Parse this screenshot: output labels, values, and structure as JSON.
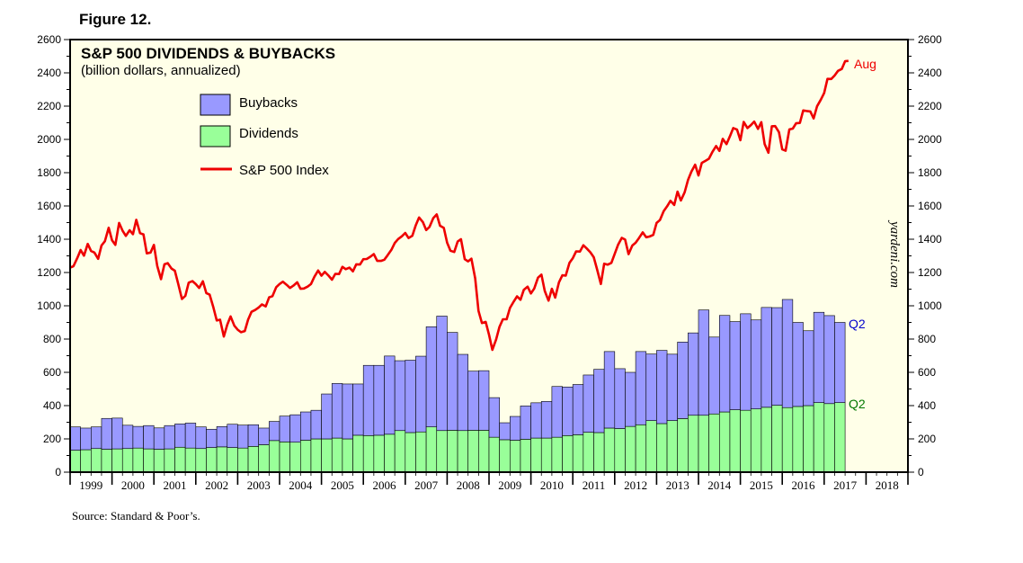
{
  "figure_label": "Figure 12.",
  "source": "Source: Standard & Poor’s.",
  "credit": "yardeni.com",
  "colors": {
    "background": "#ffffe8",
    "buybacks": "#9999ff",
    "dividends": "#99ff99",
    "index_line": "#ee0000",
    "buybacks_annotation": "#0000cc",
    "dividends_annotation": "#007700"
  },
  "chart_data": {
    "type": "bar",
    "title": "S&P 500 DIVIDENDS & BUYBACKS",
    "subtitle": "(billion dollars, annualized)",
    "ylim": [
      0,
      2600
    ],
    "yticks": [
      0,
      200,
      400,
      600,
      800,
      1000,
      1200,
      1400,
      1600,
      1800,
      2000,
      2200,
      2400,
      2600
    ],
    "ytick_labels": [
      "0",
      "200",
      "400",
      "600",
      "800",
      "1000",
      "1200",
      "1400",
      "1600",
      "1800",
      "2000",
      "2200",
      "2400",
      "2600"
    ],
    "xlim": [
      1999,
      2019
    ],
    "year_labels": [
      "1999",
      "2000",
      "2001",
      "2002",
      "2003",
      "2004",
      "2005",
      "2006",
      "2007",
      "2008",
      "2009",
      "2010",
      "2011",
      "2012",
      "2013",
      "2014",
      "2015",
      "2016",
      "2017",
      "2018"
    ],
    "stacked": true,
    "legend": [
      {
        "name": "Buybacks",
        "marker": "box",
        "color_key": "buybacks"
      },
      {
        "name": "Dividends",
        "marker": "box",
        "color_key": "dividends"
      },
      {
        "name": "S&P 500 Index",
        "marker": "line",
        "color_key": "index_line"
      }
    ],
    "quarters": [
      "1999Q1",
      "1999Q2",
      "1999Q3",
      "1999Q4",
      "2000Q1",
      "2000Q2",
      "2000Q3",
      "2000Q4",
      "2001Q1",
      "2001Q2",
      "2001Q3",
      "2001Q4",
      "2002Q1",
      "2002Q2",
      "2002Q3",
      "2002Q4",
      "2003Q1",
      "2003Q2",
      "2003Q3",
      "2003Q4",
      "2004Q1",
      "2004Q2",
      "2004Q3",
      "2004Q4",
      "2005Q1",
      "2005Q2",
      "2005Q3",
      "2005Q4",
      "2006Q1",
      "2006Q2",
      "2006Q3",
      "2006Q4",
      "2007Q1",
      "2007Q2",
      "2007Q3",
      "2007Q4",
      "2008Q1",
      "2008Q2",
      "2008Q3",
      "2008Q4",
      "2009Q1",
      "2009Q2",
      "2009Q3",
      "2009Q4",
      "2010Q1",
      "2010Q2",
      "2010Q3",
      "2010Q4",
      "2011Q1",
      "2011Q2",
      "2011Q3",
      "2011Q4",
      "2012Q1",
      "2012Q2",
      "2012Q3",
      "2012Q4",
      "2013Q1",
      "2013Q2",
      "2013Q3",
      "2013Q4",
      "2014Q1",
      "2014Q2",
      "2014Q3",
      "2014Q4",
      "2015Q1",
      "2015Q2",
      "2015Q3",
      "2015Q4",
      "2016Q1",
      "2016Q2",
      "2016Q3",
      "2016Q4",
      "2017Q1",
      "2017Q2"
    ],
    "series": [
      {
        "name": "Dividends",
        "type": "bar",
        "values": [
          132,
          135,
          142,
          138,
          140,
          142,
          145,
          140,
          138,
          140,
          150,
          145,
          142,
          148,
          152,
          148,
          145,
          155,
          165,
          190,
          182,
          180,
          192,
          200,
          200,
          205,
          200,
          222,
          220,
          222,
          228,
          250,
          238,
          242,
          272,
          250,
          252,
          250,
          252,
          252,
          210,
          195,
          192,
          198,
          205,
          205,
          210,
          220,
          225,
          240,
          238,
          265,
          262,
          275,
          285,
          310,
          292,
          310,
          322,
          342,
          342,
          350,
          362,
          375,
          372,
          380,
          390,
          402,
          388,
          395,
          400,
          418,
          412,
          418
        ]
      },
      {
        "name": "Buybacks",
        "type": "bar",
        "values": [
          140,
          130,
          130,
          185,
          185,
          140,
          130,
          140,
          128,
          140,
          140,
          150,
          130,
          110,
          122,
          140,
          138,
          130,
          100,
          115,
          155,
          165,
          170,
          172,
          270,
          328,
          330,
          308,
          422,
          420,
          470,
          420,
          435,
          455,
          602,
          688,
          588,
          458,
          355,
          358,
          238,
          102,
          143,
          200,
          212,
          220,
          305,
          292,
          302,
          344,
          380,
          460,
          360,
          325,
          440,
          400,
          440,
          399,
          460,
          495,
          633,
          462,
          580,
          530,
          580,
          535,
          600,
          587,
          650,
          505,
          450,
          543,
          529,
          482
        ]
      },
      {
        "name": "S&P 500 Index",
        "type": "line",
        "points": [
          [
            1999.0,
            1229
          ],
          [
            1999.08,
            1238
          ],
          [
            1999.17,
            1286
          ],
          [
            1999.25,
            1335
          ],
          [
            1999.33,
            1301
          ],
          [
            1999.42,
            1372
          ],
          [
            1999.5,
            1329
          ],
          [
            1999.58,
            1320
          ],
          [
            1999.67,
            1282
          ],
          [
            1999.75,
            1362
          ],
          [
            1999.83,
            1388
          ],
          [
            1999.92,
            1469
          ],
          [
            2000.0,
            1394
          ],
          [
            2000.08,
            1366
          ],
          [
            2000.17,
            1498
          ],
          [
            2000.25,
            1452
          ],
          [
            2000.33,
            1420
          ],
          [
            2000.42,
            1454
          ],
          [
            2000.5,
            1430
          ],
          [
            2000.58,
            1517
          ],
          [
            2000.67,
            1436
          ],
          [
            2000.75,
            1429
          ],
          [
            2000.83,
            1315
          ],
          [
            2000.92,
            1320
          ],
          [
            2001.0,
            1366
          ],
          [
            2001.08,
            1240
          ],
          [
            2001.17,
            1160
          ],
          [
            2001.25,
            1249
          ],
          [
            2001.33,
            1256
          ],
          [
            2001.42,
            1224
          ],
          [
            2001.5,
            1211
          ],
          [
            2001.58,
            1133
          ],
          [
            2001.67,
            1041
          ],
          [
            2001.75,
            1060
          ],
          [
            2001.83,
            1139
          ],
          [
            2001.92,
            1148
          ],
          [
            2002.0,
            1130
          ],
          [
            2002.08,
            1107
          ],
          [
            2002.17,
            1147
          ],
          [
            2002.25,
            1076
          ],
          [
            2002.33,
            1067
          ],
          [
            2002.42,
            990
          ],
          [
            2002.5,
            912
          ],
          [
            2002.58,
            916
          ],
          [
            2002.67,
            815
          ],
          [
            2002.75,
            886
          ],
          [
            2002.83,
            936
          ],
          [
            2002.92,
            880
          ],
          [
            2003.0,
            856
          ],
          [
            2003.08,
            841
          ],
          [
            2003.17,
            848
          ],
          [
            2003.25,
            917
          ],
          [
            2003.33,
            964
          ],
          [
            2003.42,
            975
          ],
          [
            2003.5,
            990
          ],
          [
            2003.58,
            1008
          ],
          [
            2003.67,
            996
          ],
          [
            2003.75,
            1051
          ],
          [
            2003.83,
            1058
          ],
          [
            2003.92,
            1112
          ],
          [
            2004.0,
            1131
          ],
          [
            2004.08,
            1145
          ],
          [
            2004.17,
            1126
          ],
          [
            2004.25,
            1107
          ],
          [
            2004.33,
            1121
          ],
          [
            2004.42,
            1141
          ],
          [
            2004.5,
            1102
          ],
          [
            2004.58,
            1104
          ],
          [
            2004.67,
            1115
          ],
          [
            2004.75,
            1130
          ],
          [
            2004.83,
            1174
          ],
          [
            2004.92,
            1212
          ],
          [
            2005.0,
            1181
          ],
          [
            2005.08,
            1204
          ],
          [
            2005.17,
            1181
          ],
          [
            2005.25,
            1157
          ],
          [
            2005.33,
            1192
          ],
          [
            2005.42,
            1191
          ],
          [
            2005.5,
            1234
          ],
          [
            2005.58,
            1220
          ],
          [
            2005.67,
            1229
          ],
          [
            2005.75,
            1207
          ],
          [
            2005.83,
            1249
          ],
          [
            2005.92,
            1248
          ],
          [
            2006.0,
            1280
          ],
          [
            2006.08,
            1281
          ],
          [
            2006.17,
            1295
          ],
          [
            2006.25,
            1311
          ],
          [
            2006.33,
            1270
          ],
          [
            2006.42,
            1270
          ],
          [
            2006.5,
            1277
          ],
          [
            2006.58,
            1304
          ],
          [
            2006.67,
            1336
          ],
          [
            2006.75,
            1378
          ],
          [
            2006.83,
            1401
          ],
          [
            2006.92,
            1418
          ],
          [
            2007.0,
            1438
          ],
          [
            2007.08,
            1407
          ],
          [
            2007.17,
            1421
          ],
          [
            2007.25,
            1482
          ],
          [
            2007.33,
            1531
          ],
          [
            2007.42,
            1503
          ],
          [
            2007.5,
            1455
          ],
          [
            2007.58,
            1474
          ],
          [
            2007.67,
            1527
          ],
          [
            2007.75,
            1549
          ],
          [
            2007.83,
            1481
          ],
          [
            2007.92,
            1468
          ],
          [
            2008.0,
            1379
          ],
          [
            2008.08,
            1331
          ],
          [
            2008.17,
            1323
          ],
          [
            2008.25,
            1386
          ],
          [
            2008.33,
            1400
          ],
          [
            2008.42,
            1280
          ],
          [
            2008.5,
            1267
          ],
          [
            2008.58,
            1283
          ],
          [
            2008.67,
            1165
          ],
          [
            2008.75,
            969
          ],
          [
            2008.83,
            896
          ],
          [
            2008.92,
            903
          ],
          [
            2009.0,
            826
          ],
          [
            2009.08,
            735
          ],
          [
            2009.17,
            798
          ],
          [
            2009.25,
            873
          ],
          [
            2009.33,
            919
          ],
          [
            2009.42,
            919
          ],
          [
            2009.5,
            987
          ],
          [
            2009.58,
            1021
          ],
          [
            2009.67,
            1057
          ],
          [
            2009.75,
            1036
          ],
          [
            2009.83,
            1096
          ],
          [
            2009.92,
            1115
          ],
          [
            2010.0,
            1074
          ],
          [
            2010.08,
            1104
          ],
          [
            2010.17,
            1169
          ],
          [
            2010.25,
            1187
          ],
          [
            2010.33,
            1089
          ],
          [
            2010.42,
            1031
          ],
          [
            2010.5,
            1102
          ],
          [
            2010.58,
            1049
          ],
          [
            2010.67,
            1141
          ],
          [
            2010.75,
            1183
          ],
          [
            2010.83,
            1181
          ],
          [
            2010.92,
            1258
          ],
          [
            2011.0,
            1286
          ],
          [
            2011.08,
            1327
          ],
          [
            2011.17,
            1326
          ],
          [
            2011.25,
            1364
          ],
          [
            2011.33,
            1345
          ],
          [
            2011.42,
            1321
          ],
          [
            2011.5,
            1292
          ],
          [
            2011.58,
            1219
          ],
          [
            2011.67,
            1131
          ],
          [
            2011.75,
            1253
          ],
          [
            2011.83,
            1247
          ],
          [
            2011.92,
            1258
          ],
          [
            2012.0,
            1312
          ],
          [
            2012.08,
            1366
          ],
          [
            2012.17,
            1408
          ],
          [
            2012.25,
            1398
          ],
          [
            2012.33,
            1310
          ],
          [
            2012.42,
            1362
          ],
          [
            2012.5,
            1379
          ],
          [
            2012.58,
            1407
          ],
          [
            2012.67,
            1441
          ],
          [
            2012.75,
            1412
          ],
          [
            2012.83,
            1416
          ],
          [
            2012.92,
            1426
          ],
          [
            2013.0,
            1498
          ],
          [
            2013.08,
            1515
          ],
          [
            2013.17,
            1569
          ],
          [
            2013.25,
            1598
          ],
          [
            2013.33,
            1631
          ],
          [
            2013.42,
            1606
          ],
          [
            2013.5,
            1686
          ],
          [
            2013.58,
            1633
          ],
          [
            2013.67,
            1682
          ],
          [
            2013.75,
            1757
          ],
          [
            2013.83,
            1806
          ],
          [
            2013.92,
            1848
          ],
          [
            2014.0,
            1783
          ],
          [
            2014.08,
            1859
          ],
          [
            2014.17,
            1872
          ],
          [
            2014.25,
            1884
          ],
          [
            2014.33,
            1924
          ],
          [
            2014.42,
            1960
          ],
          [
            2014.5,
            1931
          ],
          [
            2014.58,
            2003
          ],
          [
            2014.67,
            1972
          ],
          [
            2014.75,
            2018
          ],
          [
            2014.83,
            2068
          ],
          [
            2014.92,
            2059
          ],
          [
            2015.0,
            1995
          ],
          [
            2015.08,
            2105
          ],
          [
            2015.17,
            2068
          ],
          [
            2015.25,
            2086
          ],
          [
            2015.33,
            2107
          ],
          [
            2015.42,
            2063
          ],
          [
            2015.5,
            2104
          ],
          [
            2015.58,
            1972
          ],
          [
            2015.67,
            1920
          ],
          [
            2015.75,
            2079
          ],
          [
            2015.83,
            2080
          ],
          [
            2015.92,
            2044
          ],
          [
            2016.0,
            1940
          ],
          [
            2016.08,
            1932
          ],
          [
            2016.17,
            2060
          ],
          [
            2016.25,
            2065
          ],
          [
            2016.33,
            2097
          ],
          [
            2016.42,
            2099
          ],
          [
            2016.5,
            2174
          ],
          [
            2016.58,
            2171
          ],
          [
            2016.67,
            2168
          ],
          [
            2016.75,
            2126
          ],
          [
            2016.83,
            2199
          ],
          [
            2016.92,
            2239
          ],
          [
            2017.0,
            2279
          ],
          [
            2017.08,
            2364
          ],
          [
            2017.17,
            2363
          ],
          [
            2017.25,
            2384
          ],
          [
            2017.33,
            2412
          ],
          [
            2017.42,
            2423
          ],
          [
            2017.5,
            2470
          ],
          [
            2017.58,
            2472
          ]
        ]
      }
    ],
    "annotations": [
      {
        "text": "Aug",
        "color_key": "index_line"
      },
      {
        "text": "Q2",
        "color_key": "buybacks_annotation"
      },
      {
        "text": "Q2",
        "color_key": "dividends_annotation"
      }
    ]
  }
}
